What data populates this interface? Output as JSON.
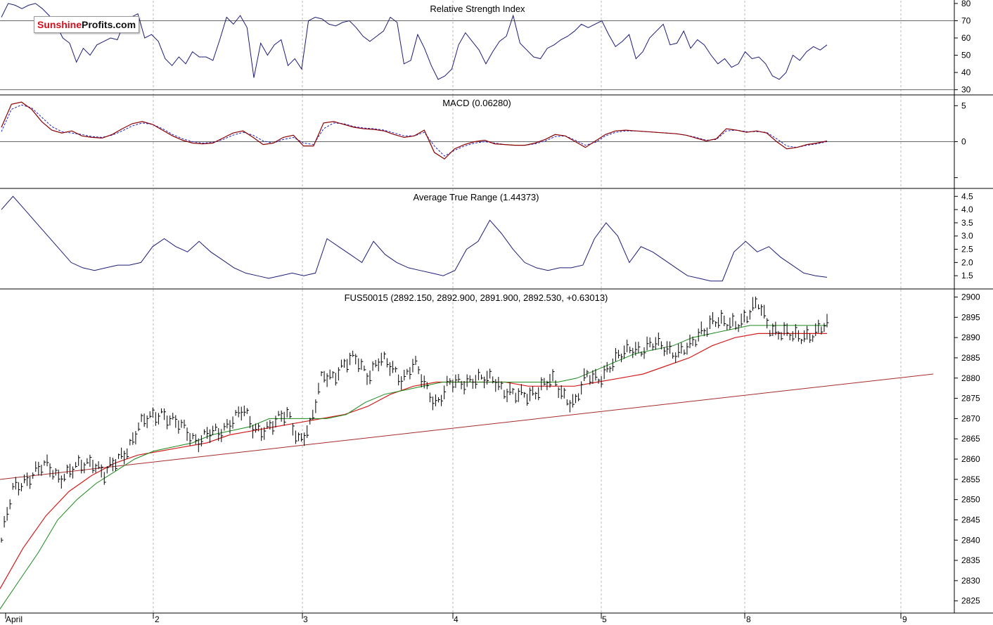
{
  "logo": {
    "part1": "Sunshine",
    "part2": "Profits.com"
  },
  "colors": {
    "grid": "#b8b8b8",
    "rsi_line": "#1c1c78",
    "macd_line": "#8b0000",
    "macd_signal": "#2020cc",
    "atr_line": "#1c1c78",
    "ma_short": "#1a8a1a",
    "ma_long": "#d41c1c",
    "trendline": "#a52a2a",
    "bars": "#000000"
  },
  "chart_data": [
    {
      "type": "line",
      "title": "Relative Strength Index",
      "ylim": [
        27,
        82
      ],
      "yticks": [
        30,
        40,
        50,
        60,
        70,
        80
      ],
      "reference_lines": [
        30,
        70
      ],
      "series": [
        {
          "values": [
            72,
            80,
            79,
            77,
            79,
            80,
            77,
            73,
            68,
            60,
            57,
            46,
            54,
            50,
            56,
            58,
            60,
            59,
            69,
            72,
            74,
            60,
            62,
            58,
            48,
            44,
            49,
            45,
            52,
            49,
            49,
            47,
            59,
            72,
            68,
            73,
            66,
            37,
            57,
            50,
            56,
            59,
            44,
            48,
            42,
            70,
            72,
            71,
            68,
            67,
            69,
            70,
            66,
            61,
            58,
            61,
            64,
            72,
            69,
            45,
            47,
            62,
            54,
            44,
            36,
            38,
            42,
            56,
            63,
            58,
            53,
            45,
            52,
            58,
            61,
            73,
            57,
            53,
            49,
            48,
            54,
            56,
            59,
            61,
            64,
            68,
            66,
            68,
            70,
            62,
            55,
            58,
            62,
            48,
            52,
            60,
            64,
            68,
            56,
            57,
            64,
            54,
            59,
            56,
            50,
            45,
            48,
            43,
            45,
            52,
            48,
            49,
            45,
            38,
            36,
            40,
            50,
            47,
            52,
            55,
            53,
            56
          ]
        }
      ]
    },
    {
      "type": "line",
      "title": "MACD (0.06280)",
      "ylim": [
        -6.5,
        6.5
      ],
      "yticks": [
        -5,
        0,
        5
      ],
      "yticklabels": [
        "",
        "0",
        "5"
      ],
      "reference_lines": [
        0
      ],
      "series": [
        {
          "values": [
            2.0,
            5.2,
            5.5,
            4.5,
            2.8,
            1.6,
            1.2,
            1.5,
            0.8,
            0.6,
            0.5,
            1.0,
            1.8,
            2.5,
            2.8,
            2.4,
            1.6,
            0.8,
            0.2,
            -0.2,
            -0.3,
            -0.2,
            0.5,
            1.2,
            1.5,
            0.6,
            -0.4,
            -0.2,
            0.6,
            0.9,
            -0.6,
            -0.6,
            2.6,
            2.8,
            2.4,
            2.0,
            1.8,
            1.7,
            1.5,
            1.0,
            0.6,
            0.8,
            1.6,
            -1.5,
            -2.4,
            -1.0,
            -0.4,
            0.0,
            0.2,
            -0.3,
            -0.4,
            -0.5,
            -0.5,
            -0.2,
            0.3,
            1.0,
            0.8,
            0.0,
            -0.8,
            0.1,
            1.0,
            1.5,
            1.6,
            1.5,
            1.4,
            1.3,
            1.2,
            1.1,
            0.9,
            0.5,
            0.1,
            0.4,
            1.8,
            1.6,
            1.3,
            1.5,
            1.2,
            0.0,
            -1.0,
            -0.8,
            -0.4,
            -0.2,
            0.1
          ]
        },
        {
          "values": [
            1.4,
            4.5,
            5.1,
            4.7,
            3.4,
            2.1,
            1.4,
            1.2,
            1.0,
            0.7,
            0.6,
            0.9,
            1.5,
            2.2,
            2.6,
            2.4,
            1.8,
            1.0,
            0.4,
            0.0,
            -0.2,
            -0.1,
            0.3,
            0.9,
            1.3,
            0.9,
            0.1,
            -0.2,
            0.3,
            0.6,
            -0.2,
            -0.4,
            1.8,
            2.6,
            2.5,
            2.1,
            1.9,
            1.8,
            1.6,
            1.2,
            0.8,
            0.8,
            1.3,
            -0.6,
            -2.0,
            -1.2,
            -0.6,
            -0.2,
            0.0,
            -0.2,
            -0.4,
            -0.5,
            -0.5,
            -0.3,
            0.1,
            0.7,
            0.8,
            0.2,
            -0.5,
            -0.1,
            0.8,
            1.3,
            1.5,
            1.5,
            1.4,
            1.3,
            1.2,
            1.1,
            0.9,
            0.6,
            0.2,
            0.3,
            1.5,
            1.6,
            1.4,
            1.4,
            1.3,
            0.4,
            -0.6,
            -0.8,
            -0.5,
            -0.3,
            0.0
          ]
        }
      ]
    },
    {
      "type": "line",
      "title": "Average True Range (1.44373)",
      "ylim": [
        1.0,
        4.8
      ],
      "yticks": [
        1.5,
        2.0,
        2.5,
        3.0,
        3.5,
        4.0,
        4.5
      ],
      "yticklabels": [
        "1.5",
        "2.0",
        "2.5",
        "3.0",
        "3.5",
        "4.0",
        "4.5"
      ],
      "series": [
        {
          "values": [
            4.0,
            4.5,
            4.0,
            3.5,
            3.0,
            2.5,
            2.0,
            1.8,
            1.7,
            1.8,
            1.9,
            1.9,
            2.0,
            2.6,
            2.9,
            2.6,
            2.4,
            2.8,
            2.4,
            2.1,
            1.8,
            1.6,
            1.5,
            1.4,
            1.5,
            1.6,
            1.5,
            1.6,
            2.9,
            2.6,
            2.3,
            2.0,
            2.8,
            2.3,
            2.0,
            1.8,
            1.7,
            1.6,
            1.5,
            1.7,
            2.5,
            2.8,
            3.6,
            3.1,
            2.5,
            2.0,
            1.8,
            1.7,
            1.8,
            1.8,
            1.9,
            2.9,
            3.5,
            3.0,
            2.0,
            2.6,
            2.4,
            2.1,
            1.8,
            1.5,
            1.4,
            1.3,
            1.3,
            2.4,
            2.8,
            2.4,
            2.6,
            2.2,
            1.9,
            1.6,
            1.5,
            1.44
          ]
        }
      ]
    },
    {
      "type": "bar",
      "title": "FUS50015 (2892.150, 2892.900, 2891.900, 2892.530, +0.63013)",
      "ylim": [
        2822,
        2902
      ],
      "yticks": [
        2825,
        2830,
        2835,
        2840,
        2845,
        2850,
        2855,
        2860,
        2865,
        2870,
        2875,
        2880,
        2885,
        2890,
        2895,
        2900
      ],
      "x_axis_labels": [
        "April",
        "2",
        "3",
        "4",
        "5",
        "8",
        "9"
      ],
      "series": [
        {
          "values": [
            2840,
            2852,
            2855,
            2857,
            2858,
            2856,
            2857,
            2858,
            2860,
            2856,
            2859,
            2863,
            2868,
            2870,
            2872,
            2869,
            2867,
            2865,
            2866,
            2866,
            2870,
            2872,
            2867,
            2868,
            2869,
            2871,
            2865,
            2868,
            2881,
            2881,
            2883,
            2885,
            2881,
            2884,
            2883,
            2880,
            2883,
            2878,
            2874,
            2878,
            2879,
            2880,
            2879,
            2880,
            2877,
            2875,
            2876,
            2878,
            2879,
            2876,
            2874,
            2880,
            2880,
            2883,
            2885,
            2888,
            2887,
            2888,
            2888,
            2886,
            2887,
            2892,
            2894,
            2893,
            2894,
            2895,
            2898,
            2893,
            2891,
            2890,
            2891,
            2891,
            2892.53
          ]
        },
        {
          "values": [
            2823,
            2830,
            2837,
            2845,
            2850,
            2854,
            2857,
            2860,
            2862,
            2863,
            2864,
            2866,
            2867,
            2868,
            2870,
            2870,
            2870,
            2870,
            2871,
            2874,
            2876,
            2877,
            2878,
            2879,
            2879,
            2879,
            2879,
            2879,
            2879,
            2879,
            2880,
            2882,
            2884,
            2886,
            2887,
            2888,
            2890,
            2891,
            2892,
            2893,
            2893,
            2893,
            2893,
            2893
          ]
        },
        {
          "values": [
            2828,
            2838,
            2846,
            2852,
            2856,
            2859,
            2861,
            2862,
            2863,
            2864,
            2866,
            2867,
            2868,
            2869,
            2870,
            2871,
            2873,
            2876,
            2878,
            2879,
            2879,
            2879,
            2879,
            2878,
            2878,
            2878,
            2879,
            2880,
            2881,
            2883,
            2885,
            2888,
            2890,
            2891,
            2891,
            2891,
            2891
          ]
        },
        {
          "values": [
            2855,
            2881
          ]
        }
      ]
    }
  ]
}
